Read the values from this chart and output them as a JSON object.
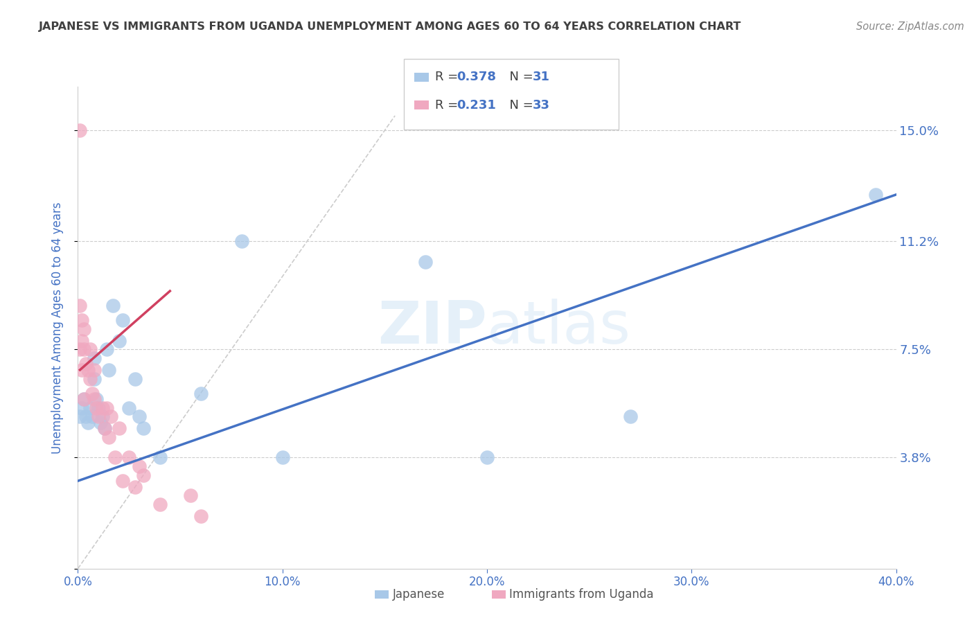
{
  "title": "JAPANESE VS IMMIGRANTS FROM UGANDA UNEMPLOYMENT AMONG AGES 60 TO 64 YEARS CORRELATION CHART",
  "source": "Source: ZipAtlas.com",
  "ylabel": "Unemployment Among Ages 60 to 64 years",
  "xlim": [
    0.0,
    0.4
  ],
  "ylim": [
    0.0,
    0.165
  ],
  "yticks": [
    0.0,
    0.038,
    0.075,
    0.112,
    0.15
  ],
  "ytick_labels": [
    "",
    "3.8%",
    "7.5%",
    "11.2%",
    "15.0%"
  ],
  "xticks": [
    0.0,
    0.1,
    0.2,
    0.3,
    0.4
  ],
  "xtick_labels": [
    "0.0%",
    "10.0%",
    "20.0%",
    "30.0%",
    "40.0%"
  ],
  "japanese_x": [
    0.001,
    0.002,
    0.003,
    0.004,
    0.005,
    0.006,
    0.007,
    0.008,
    0.008,
    0.009,
    0.01,
    0.011,
    0.012,
    0.013,
    0.014,
    0.015,
    0.017,
    0.02,
    0.022,
    0.025,
    0.028,
    0.03,
    0.032,
    0.04,
    0.06,
    0.08,
    0.1,
    0.17,
    0.2,
    0.27,
    0.39
  ],
  "japanese_y": [
    0.052,
    0.055,
    0.058,
    0.052,
    0.05,
    0.055,
    0.052,
    0.072,
    0.065,
    0.058,
    0.055,
    0.05,
    0.052,
    0.048,
    0.075,
    0.068,
    0.09,
    0.078,
    0.085,
    0.055,
    0.065,
    0.052,
    0.048,
    0.038,
    0.06,
    0.112,
    0.038,
    0.105,
    0.038,
    0.052,
    0.128
  ],
  "uganda_x": [
    0.001,
    0.001,
    0.001,
    0.002,
    0.002,
    0.002,
    0.003,
    0.003,
    0.003,
    0.004,
    0.005,
    0.006,
    0.006,
    0.007,
    0.008,
    0.008,
    0.009,
    0.01,
    0.012,
    0.013,
    0.014,
    0.015,
    0.016,
    0.018,
    0.02,
    0.022,
    0.025,
    0.028,
    0.03,
    0.032,
    0.04,
    0.055,
    0.06
  ],
  "uganda_y": [
    0.15,
    0.09,
    0.075,
    0.085,
    0.078,
    0.068,
    0.082,
    0.075,
    0.058,
    0.07,
    0.068,
    0.075,
    0.065,
    0.06,
    0.068,
    0.058,
    0.055,
    0.052,
    0.055,
    0.048,
    0.055,
    0.045,
    0.052,
    0.038,
    0.048,
    0.03,
    0.038,
    0.028,
    0.035,
    0.032,
    0.022,
    0.025,
    0.018
  ],
  "blue_line_x": [
    0.0,
    0.4
  ],
  "blue_line_y": [
    0.03,
    0.128
  ],
  "pink_line_x": [
    0.001,
    0.045
  ],
  "pink_line_y": [
    0.068,
    0.095
  ],
  "ref_line_x": [
    0.0,
    0.155
  ],
  "ref_line_y": [
    0.0,
    0.155
  ],
  "watermark_zip": "ZIP",
  "watermark_atlas": "atlas",
  "bg_color": "#ffffff",
  "grid_color": "#cccccc",
  "blue_color": "#a8c8e8",
  "pink_color": "#f0a8c0",
  "trend_blue": "#4472c4",
  "trend_pink": "#d04060",
  "title_color": "#404040",
  "tick_color": "#4472c4",
  "source_color": "#888888",
  "legend_r_color": "#404040",
  "legend_n_color": "#4472c4"
}
